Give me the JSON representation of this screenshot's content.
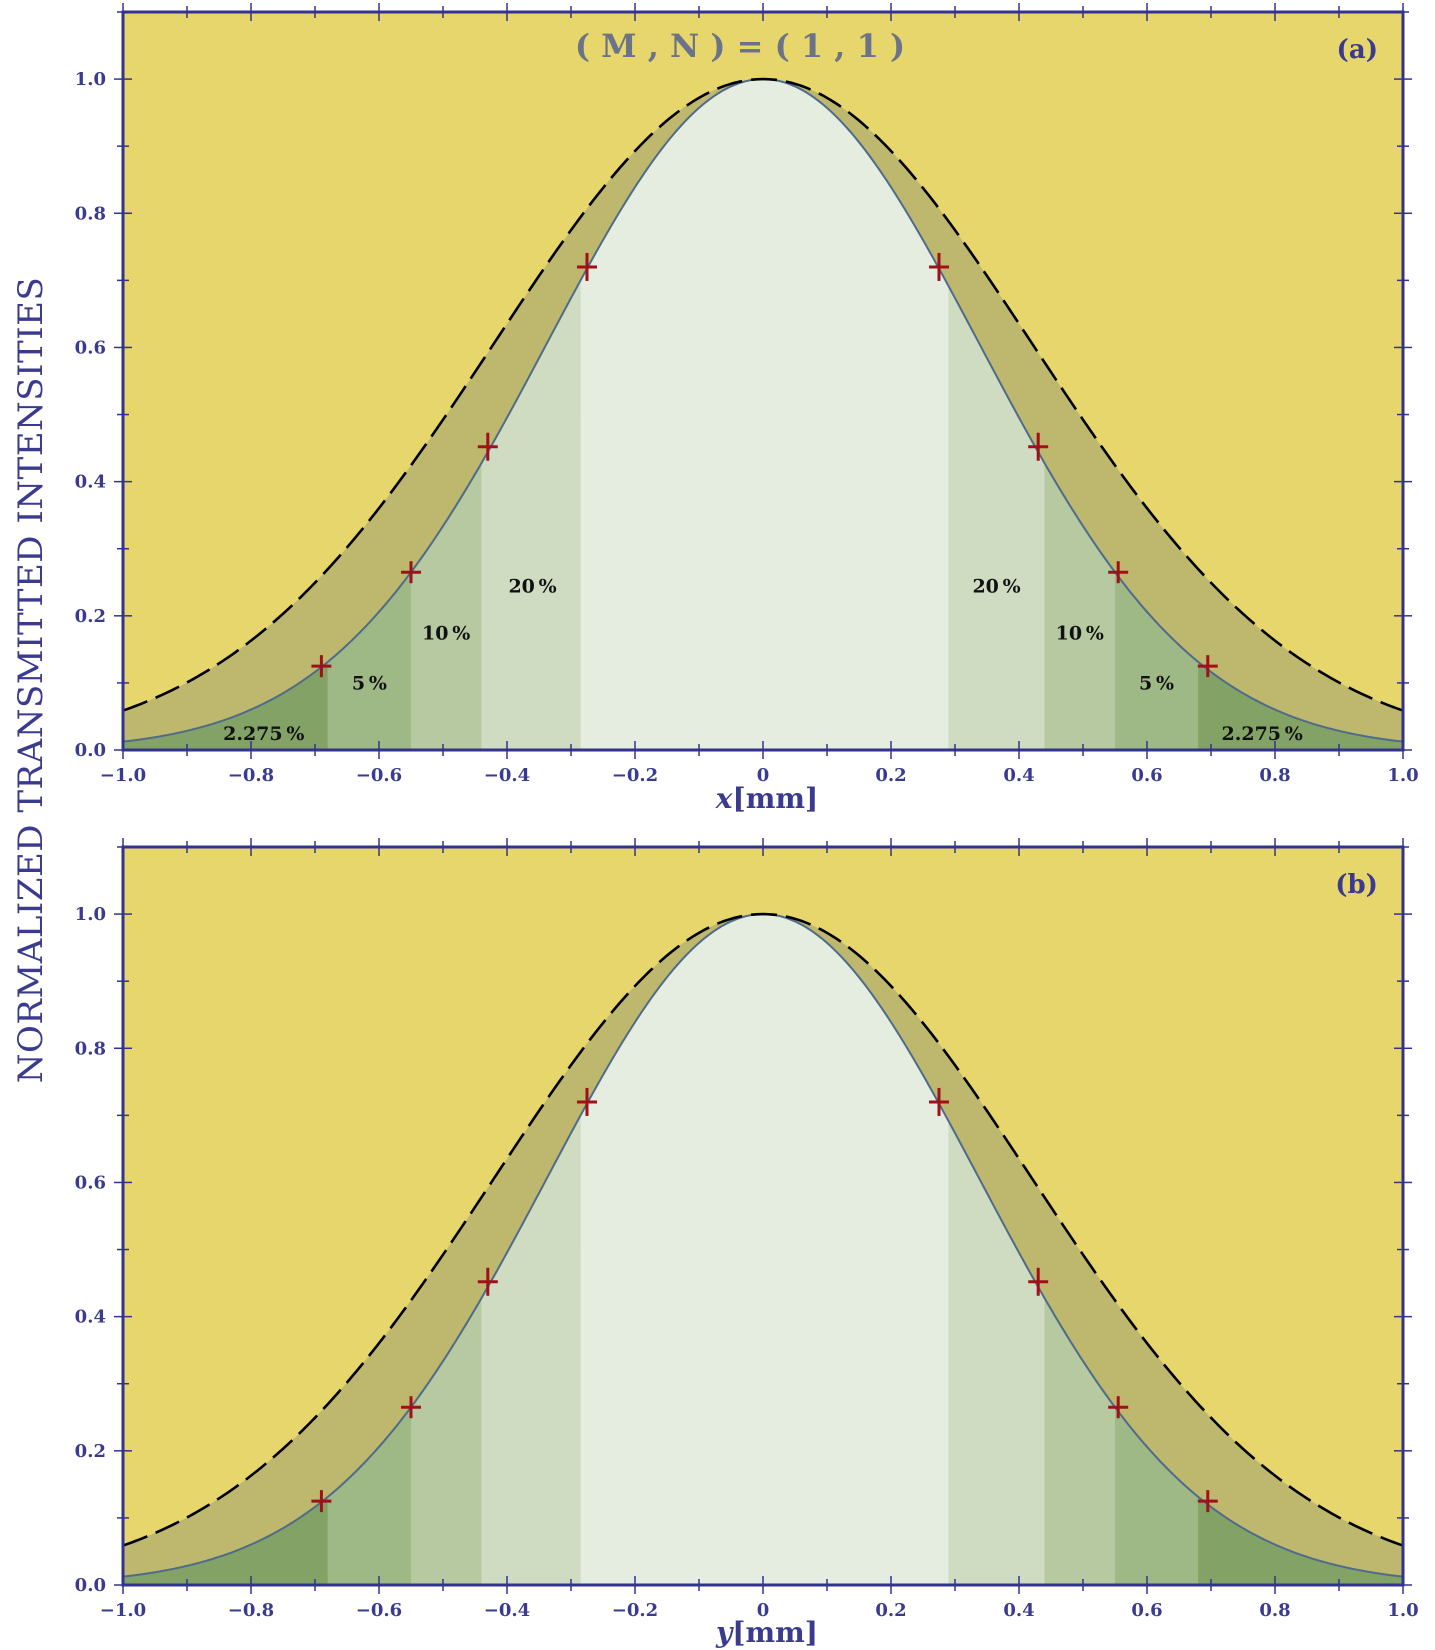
{
  "figure": {
    "title": "( M , N ) = ( 1 , 1 )",
    "ylabel": "NORMALIZED  TRANSMITTED  INTENSITIES"
  },
  "colors": {
    "background": "#e7d66c",
    "band_between_curves": "#beb86e",
    "zone_center": "#e5ece0",
    "zone_20": "#d0dcc2",
    "zone_10": "#b6c9a0",
    "zone_5": "#9eb886",
    "zone_2275": "#82a365",
    "solid_curve": "#4f6b8a",
    "dashed_curve": "#000000",
    "markers": "#a0101a",
    "axis": "#33338f",
    "text": "#3a3a8f"
  },
  "chart_data": [
    {
      "type": "line",
      "panel_label": "(a)",
      "xlabel_var": "x",
      "xlabel_unit": "[mm]",
      "xlim": [
        -1.0,
        1.0
      ],
      "ylim": [
        0.0,
        1.1
      ],
      "x_ticks": [
        "−1.0",
        "−0.8",
        "−0.6",
        "−0.4",
        "−0.2",
        "0",
        "0.2",
        "0.4",
        "0.6",
        "0.8",
        "1.0"
      ],
      "x_tick_values": [
        -1.0,
        -0.8,
        -0.6,
        -0.4,
        -0.2,
        0,
        0.2,
        0.4,
        0.6,
        0.8,
        1.0
      ],
      "y_ticks": [
        "0.0",
        "0.2",
        "0.4",
        "0.6",
        "0.8",
        "1.0"
      ],
      "y_tick_values": [
        0.0,
        0.2,
        0.4,
        0.6,
        0.8,
        1.0
      ],
      "series": [
        {
          "style": "solid",
          "sigma": 0.3375,
          "x": [
            -1.0,
            -0.8,
            -0.6,
            -0.4,
            -0.2,
            0,
            0.2,
            0.4,
            0.6,
            0.8,
            1.0
          ],
          "y": [
            0.012,
            0.06,
            0.206,
            0.495,
            0.839,
            1.0,
            0.839,
            0.495,
            0.206,
            0.06,
            0.012
          ]
        },
        {
          "style": "dashed",
          "sigma": 0.42,
          "x": [
            -1.0,
            -0.8,
            -0.6,
            -0.4,
            -0.2,
            0,
            0.2,
            0.4,
            0.6,
            0.8,
            1.0
          ],
          "y": [
            0.059,
            0.163,
            0.361,
            0.635,
            0.893,
            1.0,
            0.893,
            0.635,
            0.361,
            0.163,
            0.059
          ]
        }
      ],
      "zone_edges": [
        -0.68,
        -0.55,
        -0.44,
        -0.285,
        0.29,
        0.44,
        0.55,
        0.68
      ],
      "markers": [
        {
          "x": -0.69,
          "y": 0.125
        },
        {
          "x": -0.55,
          "y": 0.265
        },
        {
          "x": -0.43,
          "y": 0.452
        },
        {
          "x": -0.275,
          "y": 0.72
        },
        {
          "x": 0.275,
          "y": 0.72
        },
        {
          "x": 0.43,
          "y": 0.452
        },
        {
          "x": 0.555,
          "y": 0.265
        },
        {
          "x": 0.695,
          "y": 0.125
        }
      ],
      "band_labels": [
        {
          "text": "2.275 %",
          "x": -0.78,
          "y": 0.015
        },
        {
          "text": "5 %",
          "x": -0.615,
          "y": 0.09
        },
        {
          "text": "10 %",
          "x": -0.495,
          "y": 0.165
        },
        {
          "text": "20 %",
          "x": -0.36,
          "y": 0.235
        },
        {
          "text": "20 %",
          "x": 0.365,
          "y": 0.235
        },
        {
          "text": "10 %",
          "x": 0.495,
          "y": 0.165
        },
        {
          "text": "5 %",
          "x": 0.615,
          "y": 0.09
        },
        {
          "text": "2.275 %",
          "x": 0.78,
          "y": 0.015
        }
      ]
    },
    {
      "type": "line",
      "panel_label": "(b)",
      "xlabel_var": "y",
      "xlabel_unit": "[mm]",
      "xlim": [
        -1.0,
        1.0
      ],
      "ylim": [
        0.0,
        1.1
      ],
      "x_ticks": [
        "−1.0",
        "−0.8",
        "−0.6",
        "−0.4",
        "−0.2",
        "0",
        "0.2",
        "0.4",
        "0.6",
        "0.8",
        "1.0"
      ],
      "x_tick_values": [
        -1.0,
        -0.8,
        -0.6,
        -0.4,
        -0.2,
        0,
        0.2,
        0.4,
        0.6,
        0.8,
        1.0
      ],
      "y_ticks": [
        "0.0",
        "0.2",
        "0.4",
        "0.6",
        "0.8",
        "1.0"
      ],
      "y_tick_values": [
        0.0,
        0.2,
        0.4,
        0.6,
        0.8,
        1.0
      ],
      "series": [
        {
          "style": "solid",
          "sigma": 0.3375,
          "x": [
            -1.0,
            -0.8,
            -0.6,
            -0.4,
            -0.2,
            0,
            0.2,
            0.4,
            0.6,
            0.8,
            1.0
          ],
          "y": [
            0.012,
            0.06,
            0.206,
            0.495,
            0.839,
            1.0,
            0.839,
            0.495,
            0.206,
            0.06,
            0.012
          ]
        },
        {
          "style": "dashed",
          "sigma": 0.42,
          "x": [
            -1.0,
            -0.8,
            -0.6,
            -0.4,
            -0.2,
            0,
            0.2,
            0.4,
            0.6,
            0.8,
            1.0
          ],
          "y": [
            0.059,
            0.163,
            0.361,
            0.635,
            0.893,
            1.0,
            0.893,
            0.635,
            0.361,
            0.163,
            0.059
          ]
        }
      ],
      "zone_edges": [
        -0.68,
        -0.55,
        -0.44,
        -0.285,
        0.29,
        0.44,
        0.55,
        0.68
      ],
      "markers": [
        {
          "x": -0.69,
          "y": 0.125
        },
        {
          "x": -0.55,
          "y": 0.265
        },
        {
          "x": -0.43,
          "y": 0.452
        },
        {
          "x": -0.275,
          "y": 0.72
        },
        {
          "x": 0.275,
          "y": 0.72
        },
        {
          "x": 0.43,
          "y": 0.452
        },
        {
          "x": 0.555,
          "y": 0.265
        },
        {
          "x": 0.695,
          "y": 0.125
        }
      ],
      "band_labels": []
    }
  ]
}
